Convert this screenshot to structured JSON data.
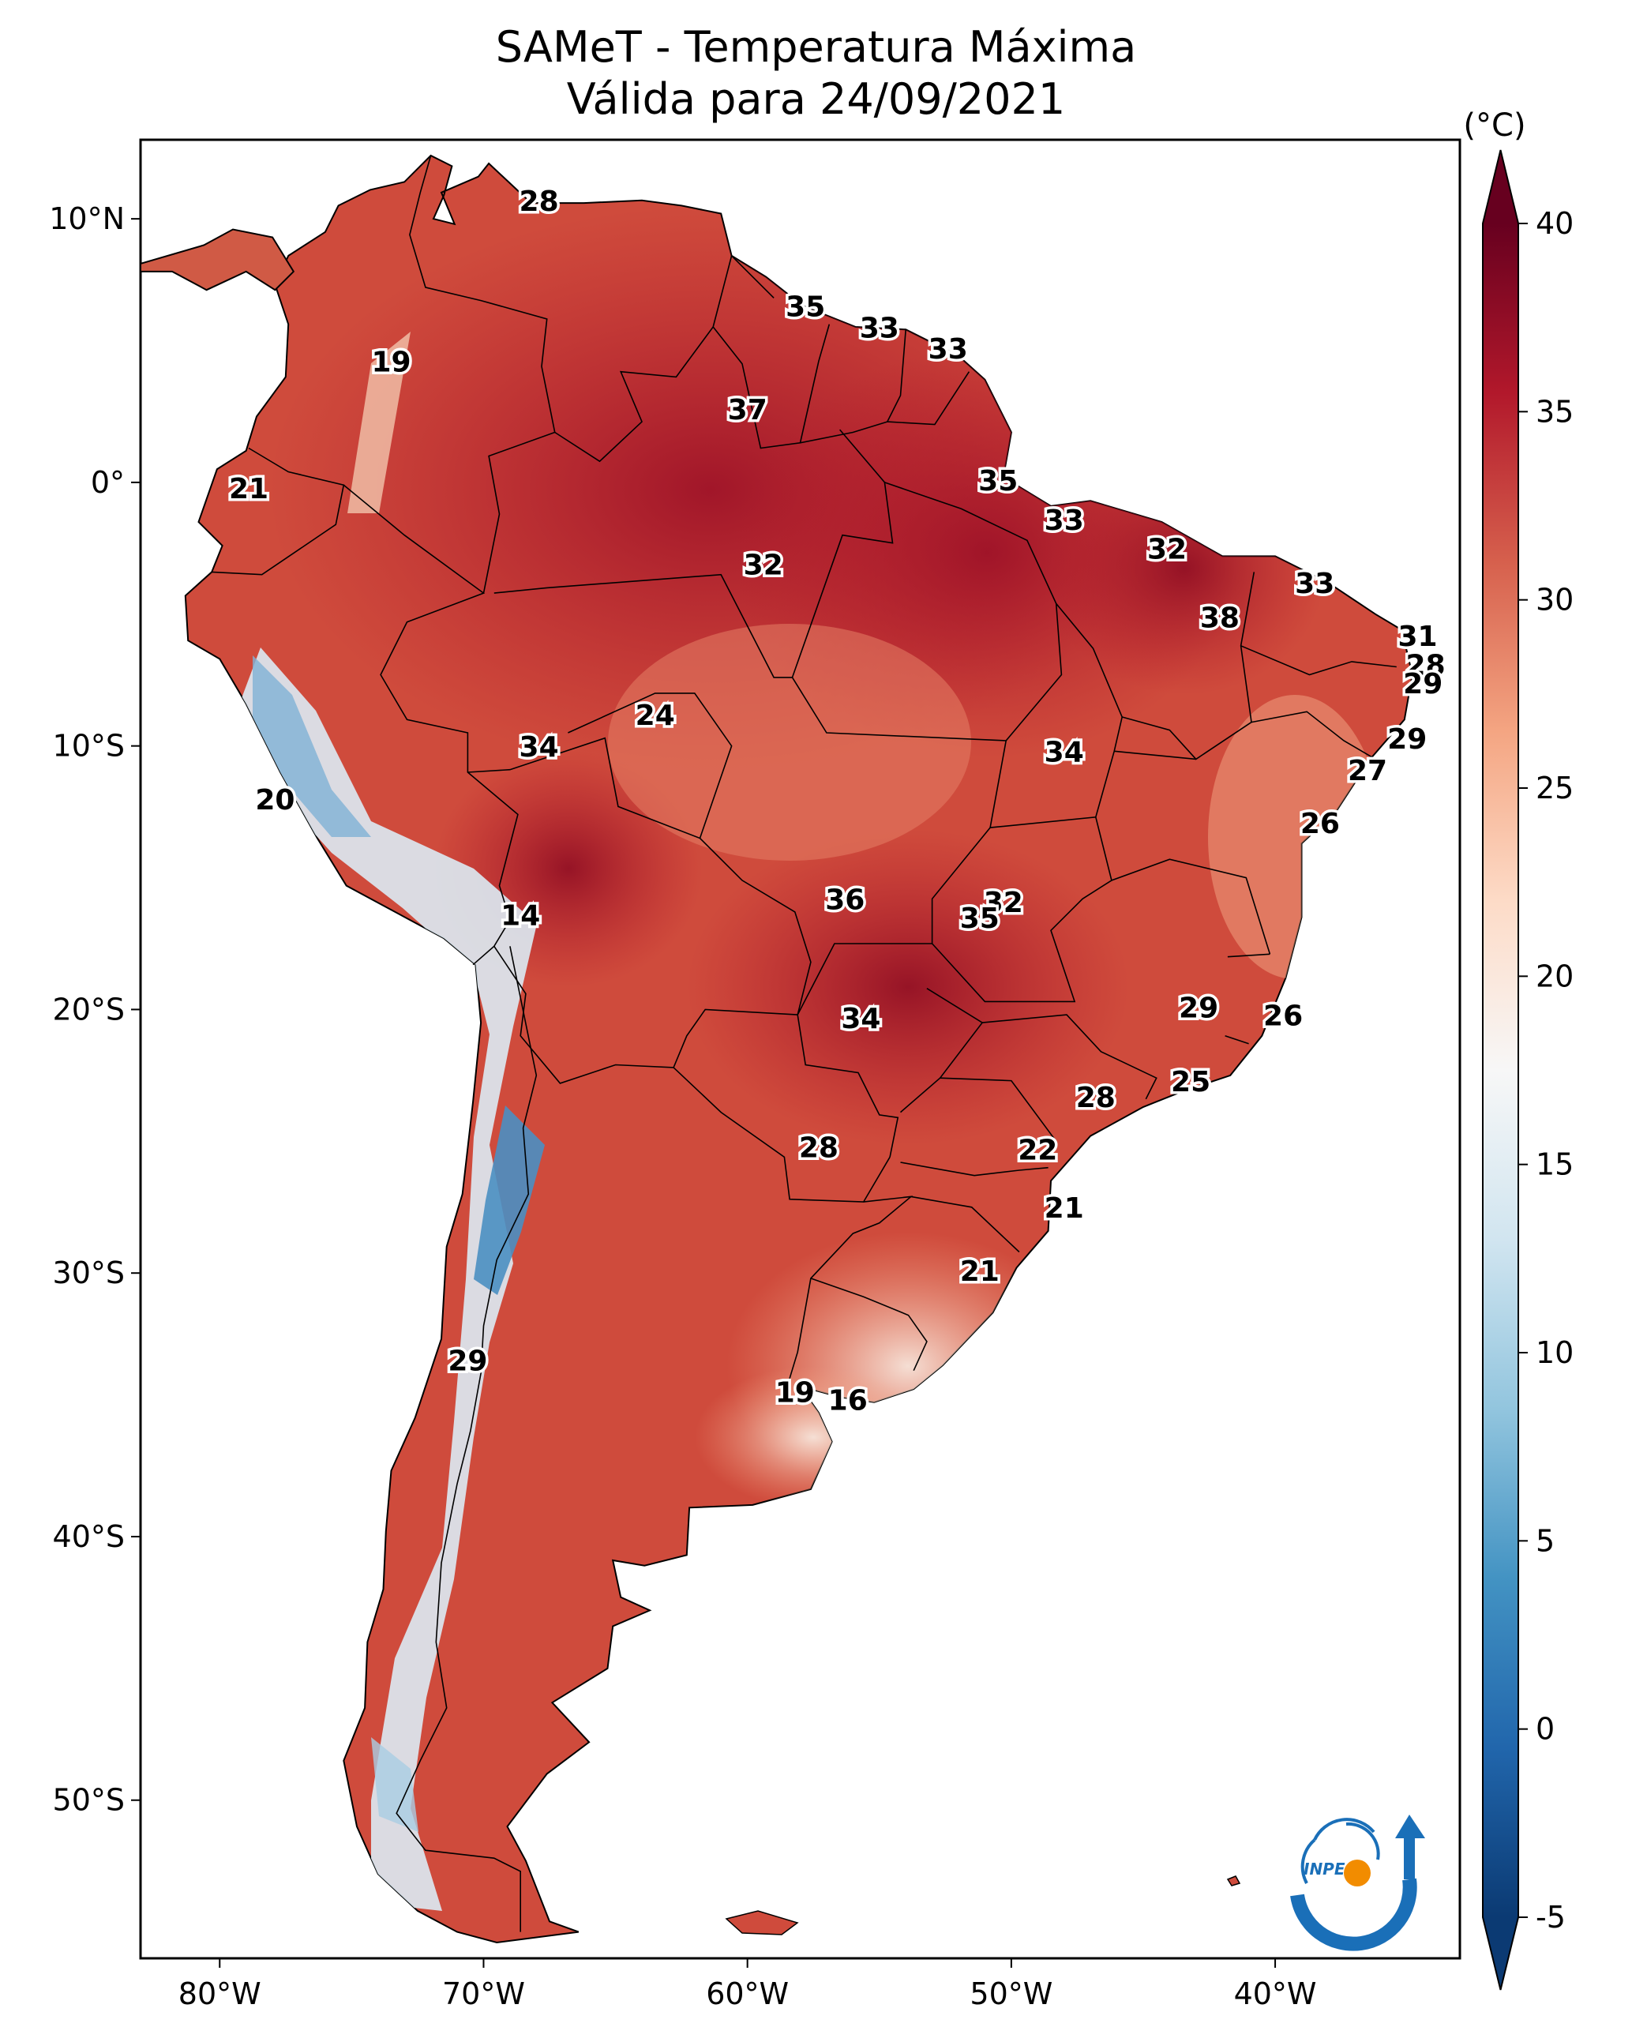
{
  "title": "SAMeT - Temperatura Máxima",
  "subtitle": "Válida para 24/09/2021",
  "colorbar": {
    "unit": "(°C)",
    "range": [
      -5,
      40
    ],
    "ticks": [
      "40",
      "35",
      "30",
      "25",
      "20",
      "15",
      "10",
      "5",
      "0",
      "-5"
    ],
    "colors": [
      "#0b3a73",
      "#2166ac",
      "#4393c3",
      "#92c5de",
      "#d1e5f0",
      "#f7f7f7",
      "#fddbc7",
      "#f4a582",
      "#d6604d",
      "#b2182b",
      "#67001f"
    ]
  },
  "axes": {
    "lon_labels": [
      "80°W",
      "70°W",
      "60°W",
      "50°W",
      "40°W"
    ],
    "lat_labels": [
      "10°N",
      "0°",
      "10°S",
      "20°S",
      "30°S",
      "40°S",
      "50°S"
    ],
    "lon_range": [
      -83,
      -33
    ],
    "lat_range": [
      -56,
      13
    ]
  },
  "logo": {
    "text": "INPE",
    "colors": [
      "#1a6fb8",
      "#f28c00"
    ]
  },
  "temperature_labels": [
    {
      "lon": -67.9,
      "lat": 10.6,
      "value": "28"
    },
    {
      "lon": -57.8,
      "lat": 6.6,
      "value": "35"
    },
    {
      "lon": -55.0,
      "lat": 5.8,
      "value": "33"
    },
    {
      "lon": -52.4,
      "lat": 5.0,
      "value": "33"
    },
    {
      "lon": -73.5,
      "lat": 4.5,
      "value": "19"
    },
    {
      "lon": -60.0,
      "lat": 2.7,
      "value": "37"
    },
    {
      "lon": -78.9,
      "lat": -0.3,
      "value": "21"
    },
    {
      "lon": -50.5,
      "lat": 0.0,
      "value": "35"
    },
    {
      "lon": -48.0,
      "lat": -1.5,
      "value": "33"
    },
    {
      "lon": -44.1,
      "lat": -2.6,
      "value": "32"
    },
    {
      "lon": -59.4,
      "lat": -3.2,
      "value": "32"
    },
    {
      "lon": -38.5,
      "lat": -3.9,
      "value": "33"
    },
    {
      "lon": -42.1,
      "lat": -5.2,
      "value": "38"
    },
    {
      "lon": -34.6,
      "lat": -5.9,
      "value": "31"
    },
    {
      "lon": -34.3,
      "lat": -7.0,
      "value": "28"
    },
    {
      "lon": -34.4,
      "lat": -7.7,
      "value": "29"
    },
    {
      "lon": -63.5,
      "lat": -8.9,
      "value": "24"
    },
    {
      "lon": -35.0,
      "lat": -9.8,
      "value": "29"
    },
    {
      "lon": -67.9,
      "lat": -10.1,
      "value": "34"
    },
    {
      "lon": -48.0,
      "lat": -10.3,
      "value": "34"
    },
    {
      "lon": -36.5,
      "lat": -11.0,
      "value": "27"
    },
    {
      "lon": -77.9,
      "lat": -12.1,
      "value": "20"
    },
    {
      "lon": -38.3,
      "lat": -13.0,
      "value": "26"
    },
    {
      "lon": -56.3,
      "lat": -15.9,
      "value": "36"
    },
    {
      "lon": -50.3,
      "lat": -16.0,
      "value": "32"
    },
    {
      "lon": -51.2,
      "lat": -16.6,
      "value": "35"
    },
    {
      "lon": -68.6,
      "lat": -16.5,
      "value": "14"
    },
    {
      "lon": -42.9,
      "lat": -20.0,
      "value": "29"
    },
    {
      "lon": -39.7,
      "lat": -20.3,
      "value": "26"
    },
    {
      "lon": -55.7,
      "lat": -20.4,
      "value": "34"
    },
    {
      "lon": -43.2,
      "lat": -22.8,
      "value": "25"
    },
    {
      "lon": -46.8,
      "lat": -23.4,
      "value": "28"
    },
    {
      "lon": -49.0,
      "lat": -25.4,
      "value": "22"
    },
    {
      "lon": -57.3,
      "lat": -25.3,
      "value": "28"
    },
    {
      "lon": -48.0,
      "lat": -27.6,
      "value": "21"
    },
    {
      "lon": -51.2,
      "lat": -30.0,
      "value": "21"
    },
    {
      "lon": -70.6,
      "lat": -33.4,
      "value": "29"
    },
    {
      "lon": -58.2,
      "lat": -34.6,
      "value": "19"
    },
    {
      "lon": -56.2,
      "lat": -34.9,
      "value": "16"
    }
  ]
}
